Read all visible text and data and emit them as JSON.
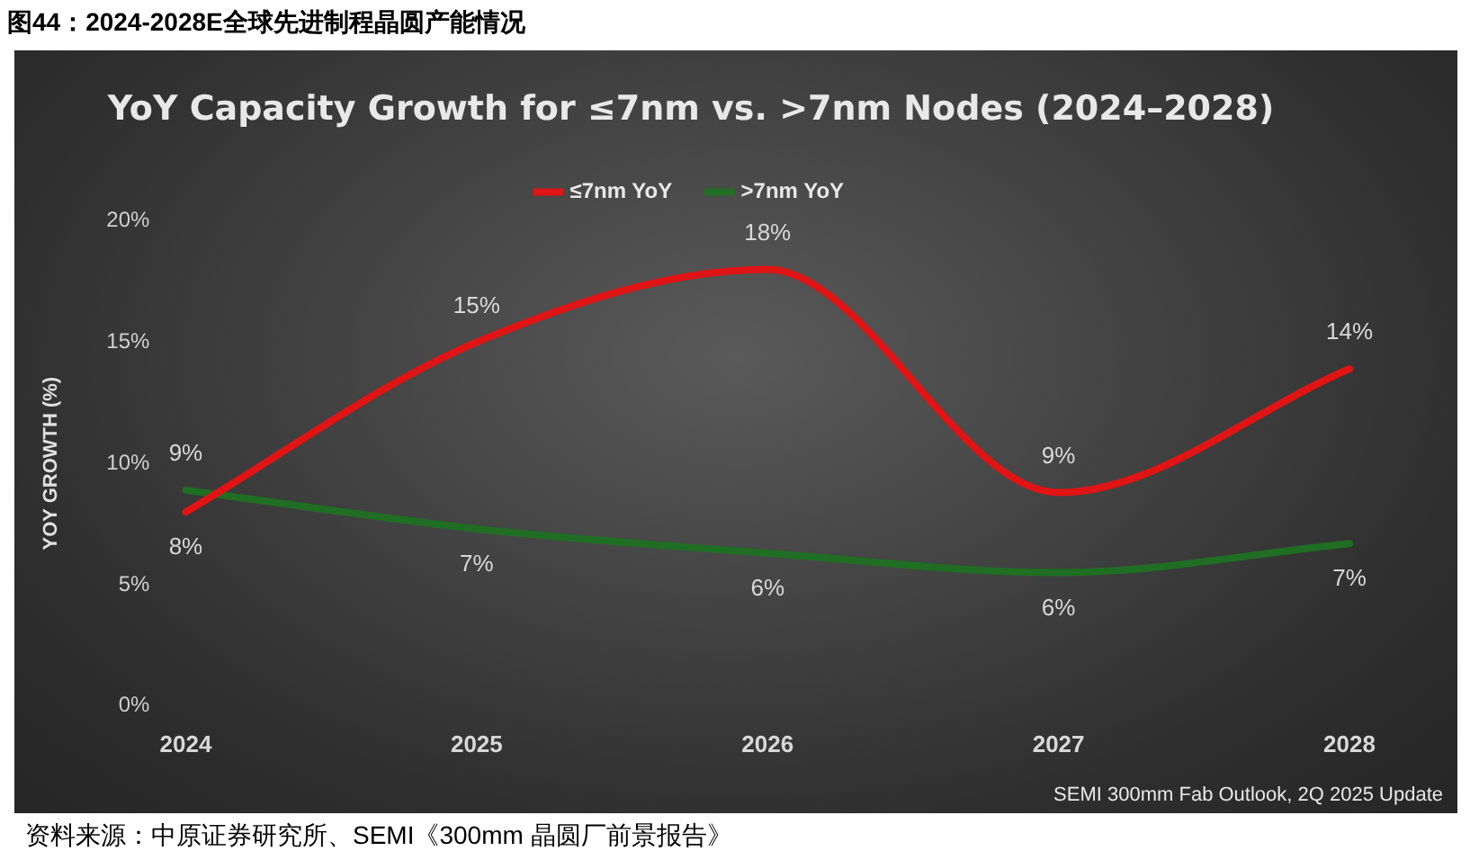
{
  "chart_data": {
    "type": "line",
    "title": "YoY Capacity Growth for ≤7nm vs. >7nm Nodes (2024–2028)",
    "ylabel": "YOY GROWTH (%)",
    "categories": [
      "2024",
      "2025",
      "2026",
      "2027",
      "2028"
    ],
    "series": [
      {
        "name": "≤7nm YoY",
        "color": "#e01414",
        "values": [
          8,
          15,
          18,
          8.8,
          13.9
        ],
        "value_labels": [
          "8%",
          "15%",
          "18%",
          "9%",
          "14%"
        ]
      },
      {
        "name": ">7nm YoY",
        "color": "#1f6e23",
        "values": [
          8.9,
          7.3,
          6.3,
          5.5,
          6.7
        ],
        "value_labels": [
          "9%",
          "7%",
          "6%",
          "6%",
          "7%"
        ]
      }
    ],
    "ylim": [
      0,
      20
    ],
    "yticks": [
      {
        "value": 0,
        "label": "0%"
      },
      {
        "value": 5,
        "label": "5%"
      },
      {
        "value": 10,
        "label": "10%"
      },
      {
        "value": 15,
        "label": "15%"
      },
      {
        "value": 20,
        "label": "20%"
      }
    ],
    "legend": "top",
    "marker": "none",
    "line_style": "solid",
    "annotations": [
      "图44：2024-2028E全球先进制程晶圆产能情况",
      "SEMI 300mm Fab Outlook, 2Q 2025 Update",
      "资料来源：中原证券研究所、SEMI《300mm 晶圆厂前景报告》"
    ]
  }
}
